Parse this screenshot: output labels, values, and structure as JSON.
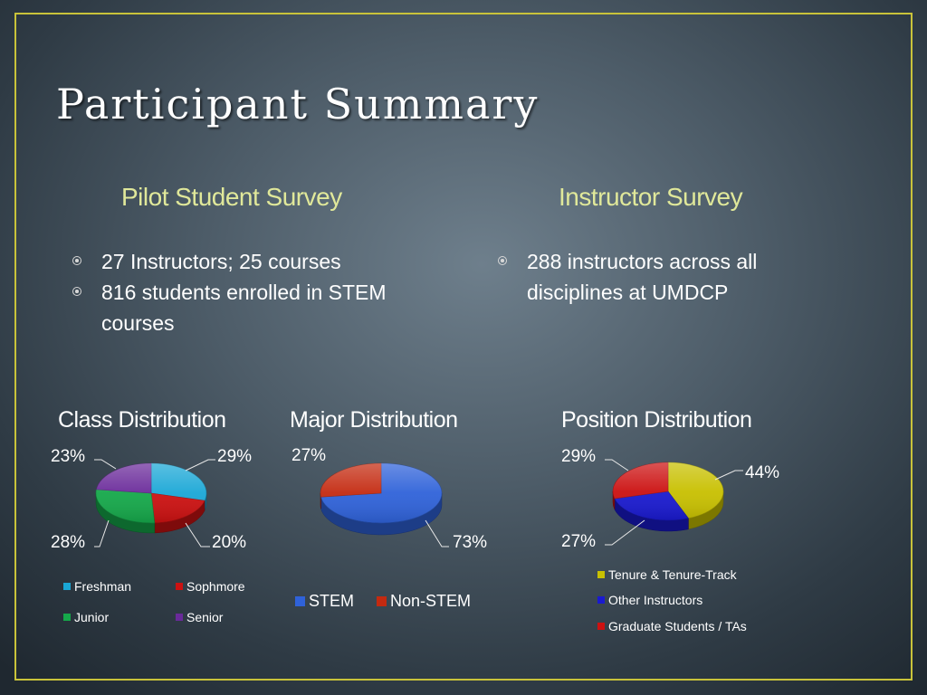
{
  "slide": {
    "title": "Participant Summary",
    "left_heading": "Pilot Student Survey",
    "right_heading": "Instructor Survey",
    "left_bullets": [
      "27 Instructors; 25 courses",
      "816 students enrolled in STEM courses"
    ],
    "right_bullets": [
      "288 instructors across all disciplines at UMDCP"
    ],
    "colors": {
      "frame": "#c9c33a",
      "heading": "#e0e89a",
      "text": "#ffffff"
    }
  },
  "chart_data": [
    {
      "type": "pie",
      "title": "Class Distribution",
      "categories": [
        "Freshman",
        "Sophmore",
        "Junior",
        "Senior"
      ],
      "values": [
        29,
        20,
        28,
        23
      ],
      "labels": [
        "29%",
        "20%",
        "28%",
        "23%"
      ],
      "colors": [
        "#1aa7d6",
        "#cc1111",
        "#15a84a",
        "#6a2a9a"
      ],
      "legend": "bottom"
    },
    {
      "type": "pie",
      "title": "Major Distribution",
      "categories": [
        "STEM",
        "Non-STEM"
      ],
      "values": [
        73,
        27
      ],
      "labels": [
        "73%",
        "27%"
      ],
      "colors": [
        "#2f62d9",
        "#c42a10"
      ],
      "legend": "bottom"
    },
    {
      "type": "pie",
      "title": "Position Distribution",
      "categories": [
        "Tenure & Tenure-Track",
        "Other Instructors",
        "Graduate Students / TAs"
      ],
      "values": [
        44,
        27,
        29
      ],
      "labels": [
        "44%",
        "27%",
        "29%"
      ],
      "colors": [
        "#c8c000",
        "#1a1ad0",
        "#cc1111"
      ],
      "legend": "bottom"
    }
  ]
}
